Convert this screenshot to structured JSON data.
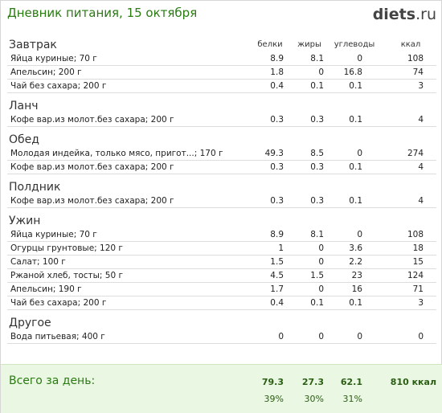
{
  "header": {
    "title": "Дневник питания, 15 октября",
    "brand": "diets",
    "brand_tld": ".ru"
  },
  "columns": [
    "белки",
    "жиры",
    "углеводы",
    "ккал"
  ],
  "sections": [
    {
      "name": "Завтрак",
      "items": [
        {
          "name": "Яйца куриные; 70 г",
          "v": [
            "8.9",
            "8.1",
            "0",
            "108"
          ]
        },
        {
          "name": "Апельсин; 200 г",
          "v": [
            "1.8",
            "0",
            "16.8",
            "74"
          ]
        },
        {
          "name": "Чай без сахара; 200 г",
          "v": [
            "0.4",
            "0.1",
            "0.1",
            "3"
          ]
        }
      ]
    },
    {
      "name": "Ланч",
      "items": [
        {
          "name": "Кофе вар.из молот.без сахара; 200 г",
          "v": [
            "0.3",
            "0.3",
            "0.1",
            "4"
          ]
        }
      ]
    },
    {
      "name": "Обед",
      "items": [
        {
          "name": "Молодая индейка, только мясо, пригот...; 170 г",
          "v": [
            "49.3",
            "8.5",
            "0",
            "274"
          ]
        },
        {
          "name": "Кофе вар.из молот.без сахара; 200 г",
          "v": [
            "0.3",
            "0.3",
            "0.1",
            "4"
          ]
        }
      ]
    },
    {
      "name": "Полдник",
      "items": [
        {
          "name": "Кофе вар.из молот.без сахара; 200 г",
          "v": [
            "0.3",
            "0.3",
            "0.1",
            "4"
          ]
        }
      ]
    },
    {
      "name": "Ужин",
      "items": [
        {
          "name": "Яйца куриные; 70 г",
          "v": [
            "8.9",
            "8.1",
            "0",
            "108"
          ]
        },
        {
          "name": "Огурцы грунтовые; 120 г",
          "v": [
            "1",
            "0",
            "3.6",
            "18"
          ]
        },
        {
          "name": "Салат; 100 г",
          "v": [
            "1.5",
            "0",
            "2.2",
            "15"
          ]
        },
        {
          "name": "Ржаной хлеб, тосты; 50 г",
          "v": [
            "4.5",
            "1.5",
            "23",
            "124"
          ]
        },
        {
          "name": "Апельсин; 190 г",
          "v": [
            "1.7",
            "0",
            "16",
            "71"
          ]
        },
        {
          "name": "Чай без сахара; 200 г",
          "v": [
            "0.4",
            "0.1",
            "0.1",
            "3"
          ]
        }
      ]
    },
    {
      "name": "Другое",
      "items": [
        {
          "name": "Вода питьевая; 400 г",
          "v": [
            "0",
            "0",
            "0",
            "0"
          ]
        }
      ]
    }
  ],
  "total": {
    "label": "Всего за день:",
    "values": [
      "79.3",
      "27.3",
      "62.1",
      "810 ккал"
    ],
    "percents": [
      "39%",
      "30%",
      "31%"
    ]
  }
}
